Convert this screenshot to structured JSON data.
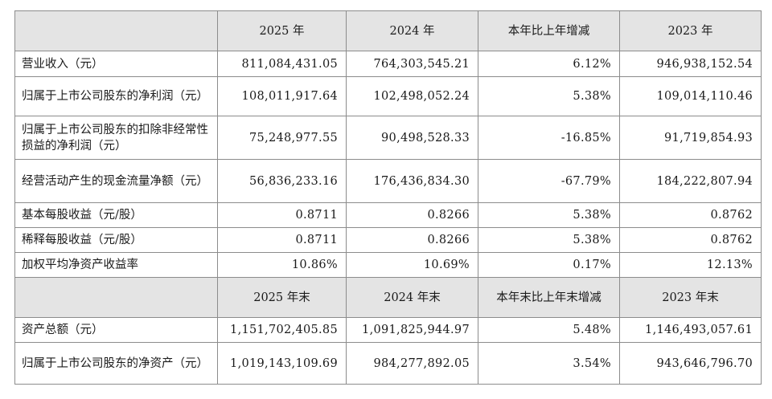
{
  "header1": {
    "label": "",
    "col1": "2025 年",
    "col2": "2024 年",
    "col3": "本年比上年增减",
    "col4": "2023 年"
  },
  "rows1": [
    {
      "label": "营业收入（元）",
      "v1": "811,084,431.05",
      "v2": "764,303,545.21",
      "v3": "6.12%",
      "v4": "946,938,152.54"
    },
    {
      "label": "归属于上市公司股东的净利润（元）",
      "v1": "108,011,917.64",
      "v2": "102,498,052.24",
      "v3": "5.38%",
      "v4": "109,014,110.46"
    },
    {
      "label": "归属于上市公司股东的扣除非经常性损益的净利润（元）",
      "v1": "75,248,977.55",
      "v2": "90,498,528.33",
      "v3": "-16.85%",
      "v4": "91,719,854.93"
    },
    {
      "label": "经营活动产生的现金流量净额（元）",
      "v1": "56,836,233.16",
      "v2": "176,436,834.30",
      "v3": "-67.79%",
      "v4": "184,222,807.94"
    },
    {
      "label": "基本每股收益（元/股）",
      "v1": "0.8711",
      "v2": "0.8266",
      "v3": "5.38%",
      "v4": "0.8762"
    },
    {
      "label": "稀释每股收益（元/股）",
      "v1": "0.8711",
      "v2": "0.8266",
      "v3": "5.38%",
      "v4": "0.8762"
    },
    {
      "label": "加权平均净资产收益率",
      "v1": "10.86%",
      "v2": "10.69%",
      "v3": "0.17%",
      "v4": "12.13%"
    }
  ],
  "header2": {
    "label": "",
    "col1": "2025 年末",
    "col2": "2024 年末",
    "col3": "本年末比上年末增减",
    "col4": "2023 年末"
  },
  "rows2": [
    {
      "label": "资产总额（元）",
      "v1": "1,151,702,405.85",
      "v2": "1,091,825,944.97",
      "v3": "5.48%",
      "v4": "1,146,493,057.61"
    },
    {
      "label": "归属于上市公司股东的净资产（元）",
      "v1": "1,019,143,109.69",
      "v2": "984,277,892.05",
      "v3": "3.54%",
      "v4": "943,646,796.70"
    }
  ]
}
